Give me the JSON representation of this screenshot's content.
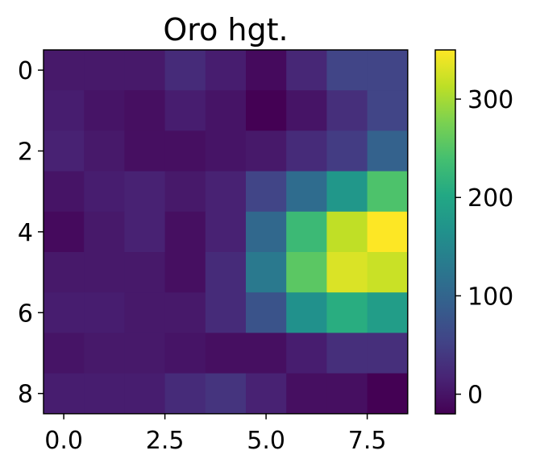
{
  "chart_data": {
    "type": "heatmap",
    "title": "Oro hgt.",
    "xlabel": "",
    "ylabel": "",
    "colormap": "viridis",
    "vmin": -20,
    "vmax": 350,
    "x_ticks": [
      {
        "value": 0.0,
        "label": "0.0"
      },
      {
        "value": 2.5,
        "label": "2.5"
      },
      {
        "value": 5.0,
        "label": "5.0"
      },
      {
        "value": 7.5,
        "label": "7.5"
      }
    ],
    "y_ticks": [
      {
        "value": 0,
        "label": "0"
      },
      {
        "value": 2,
        "label": "2"
      },
      {
        "value": 4,
        "label": "4"
      },
      {
        "value": 6,
        "label": "6"
      },
      {
        "value": 8,
        "label": "8"
      }
    ],
    "colorbar_ticks": [
      {
        "value": 0,
        "label": "0"
      },
      {
        "value": 100,
        "label": "100"
      },
      {
        "value": 200,
        "label": "200"
      },
      {
        "value": 300,
        "label": "300"
      }
    ],
    "values": [
      [
        5,
        5,
        5,
        25,
        10,
        -10,
        20,
        55,
        55
      ],
      [
        10,
        0,
        -5,
        10,
        0,
        -20,
        0,
        30,
        55
      ],
      [
        15,
        5,
        -5,
        -5,
        0,
        5,
        25,
        45,
        95
      ],
      [
        0,
        10,
        15,
        5,
        15,
        55,
        110,
        175,
        245
      ],
      [
        -10,
        5,
        15,
        -5,
        15,
        105,
        230,
        315,
        350
      ],
      [
        5,
        5,
        5,
        -5,
        25,
        130,
        255,
        330,
        320
      ],
      [
        10,
        10,
        5,
        5,
        25,
        75,
        165,
        210,
        185
      ],
      [
        0,
        5,
        5,
        0,
        -5,
        -5,
        10,
        30,
        30
      ],
      [
        10,
        10,
        10,
        25,
        35,
        15,
        -5,
        -5,
        -20
      ]
    ]
  }
}
